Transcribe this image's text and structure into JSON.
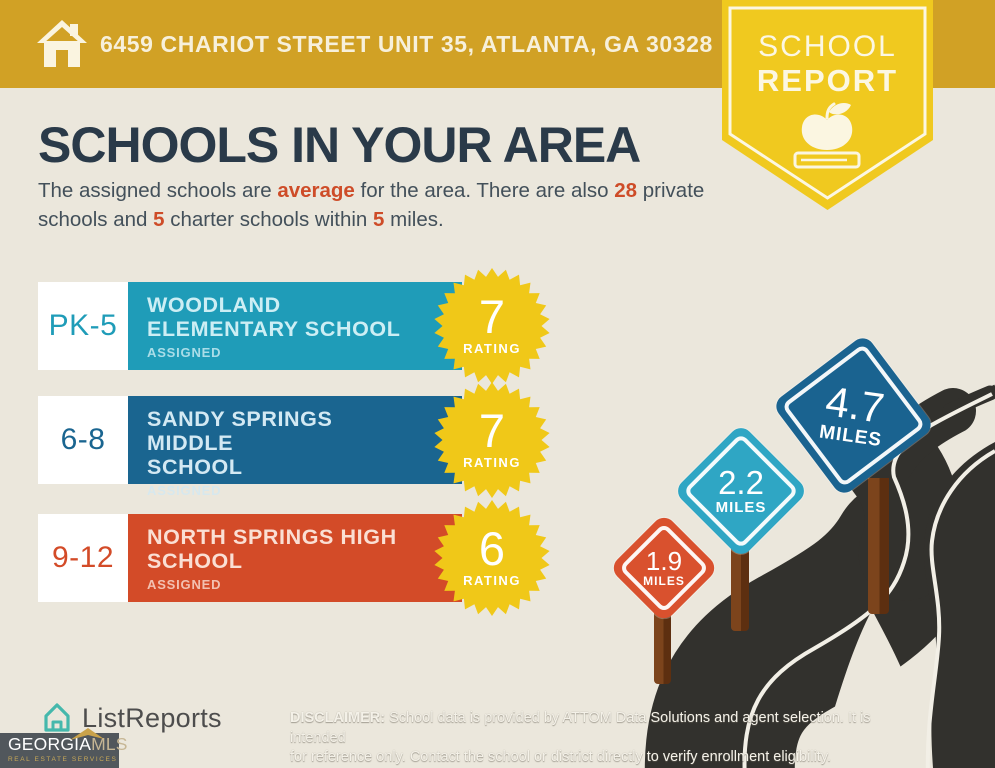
{
  "banner": {
    "address": "6459 CHARIOT STREET UNIT 35, ATLANTA, GA 30328"
  },
  "badge": {
    "line1": "SCHOOL",
    "line2": "REPORT"
  },
  "main": {
    "title": "SCHOOLS IN YOUR AREA",
    "intro": {
      "seg1": "The assigned schools are ",
      "hl1": "average",
      "seg2": " for the area. There are also ",
      "hl2": "28",
      "seg3": " private schools and ",
      "hl3": "5",
      "seg4": " charter schools within ",
      "hl4": "5",
      "seg5": " miles."
    }
  },
  "schools": [
    {
      "grades": "PK-5",
      "name": "WOODLAND\nELEMENTARY SCHOOL",
      "status": "ASSIGNED",
      "rating": "7",
      "rating_label": "RATING",
      "color": "#1F9CB8",
      "text_color": "#CDEEF4"
    },
    {
      "grades": "6-8",
      "name": "SANDY SPRINGS MIDDLE\nSCHOOL",
      "status": "ASSIGNED",
      "rating": "7",
      "rating_label": "RATING",
      "color": "#1A6590",
      "text_color": "#D3E9F3"
    },
    {
      "grades": "9-12",
      "name": "NORTH SPRINGS HIGH\nSCHOOL",
      "status": "ASSIGNED",
      "rating": "6",
      "rating_label": "RATING",
      "color": "#D34B28",
      "text_color": "#FADFD4"
    }
  ],
  "signs": [
    {
      "value": "1.9",
      "label": "MILES",
      "color": "#D9512E"
    },
    {
      "value": "2.2",
      "label": "MILES",
      "color": "#2FA6C4"
    },
    {
      "value": "4.7",
      "label": "MILES",
      "color": "#1A6390"
    }
  ],
  "footer": {
    "brand": "ListReports",
    "disclaimer_label": "DISCLAIMER:",
    "disclaimer_rest1": " School data is provided by ATTOM Data Solutions and agent selection. It is intended",
    "disclaimer_line2": "for reference only. Contact the school or district directly to verify enrollment eligibility.",
    "mls_name_1": "GEORGIA",
    "mls_name_2": "MLS",
    "mls_tagline": "REAL ESTATE SERVICES"
  },
  "colors": {
    "banner-gold": "#D1A125",
    "badge-yellow": "#F0C91F",
    "star-yellow": "#F0C818",
    "background": "#EBE7DC",
    "heading-navy": "#2A3A49",
    "body-text": "#43505A",
    "accent-red": "#CE4C28",
    "road-dark": "#32312D",
    "post-brown": "#7C441C",
    "post-brown-dark": "#5D2F10",
    "logo-teal": "#45B8AC",
    "logo-gray": "#4D4D4D",
    "mls-bg": "#51575C",
    "mls-tan": "#C6B694",
    "mls-gold": "#C9A957"
  }
}
